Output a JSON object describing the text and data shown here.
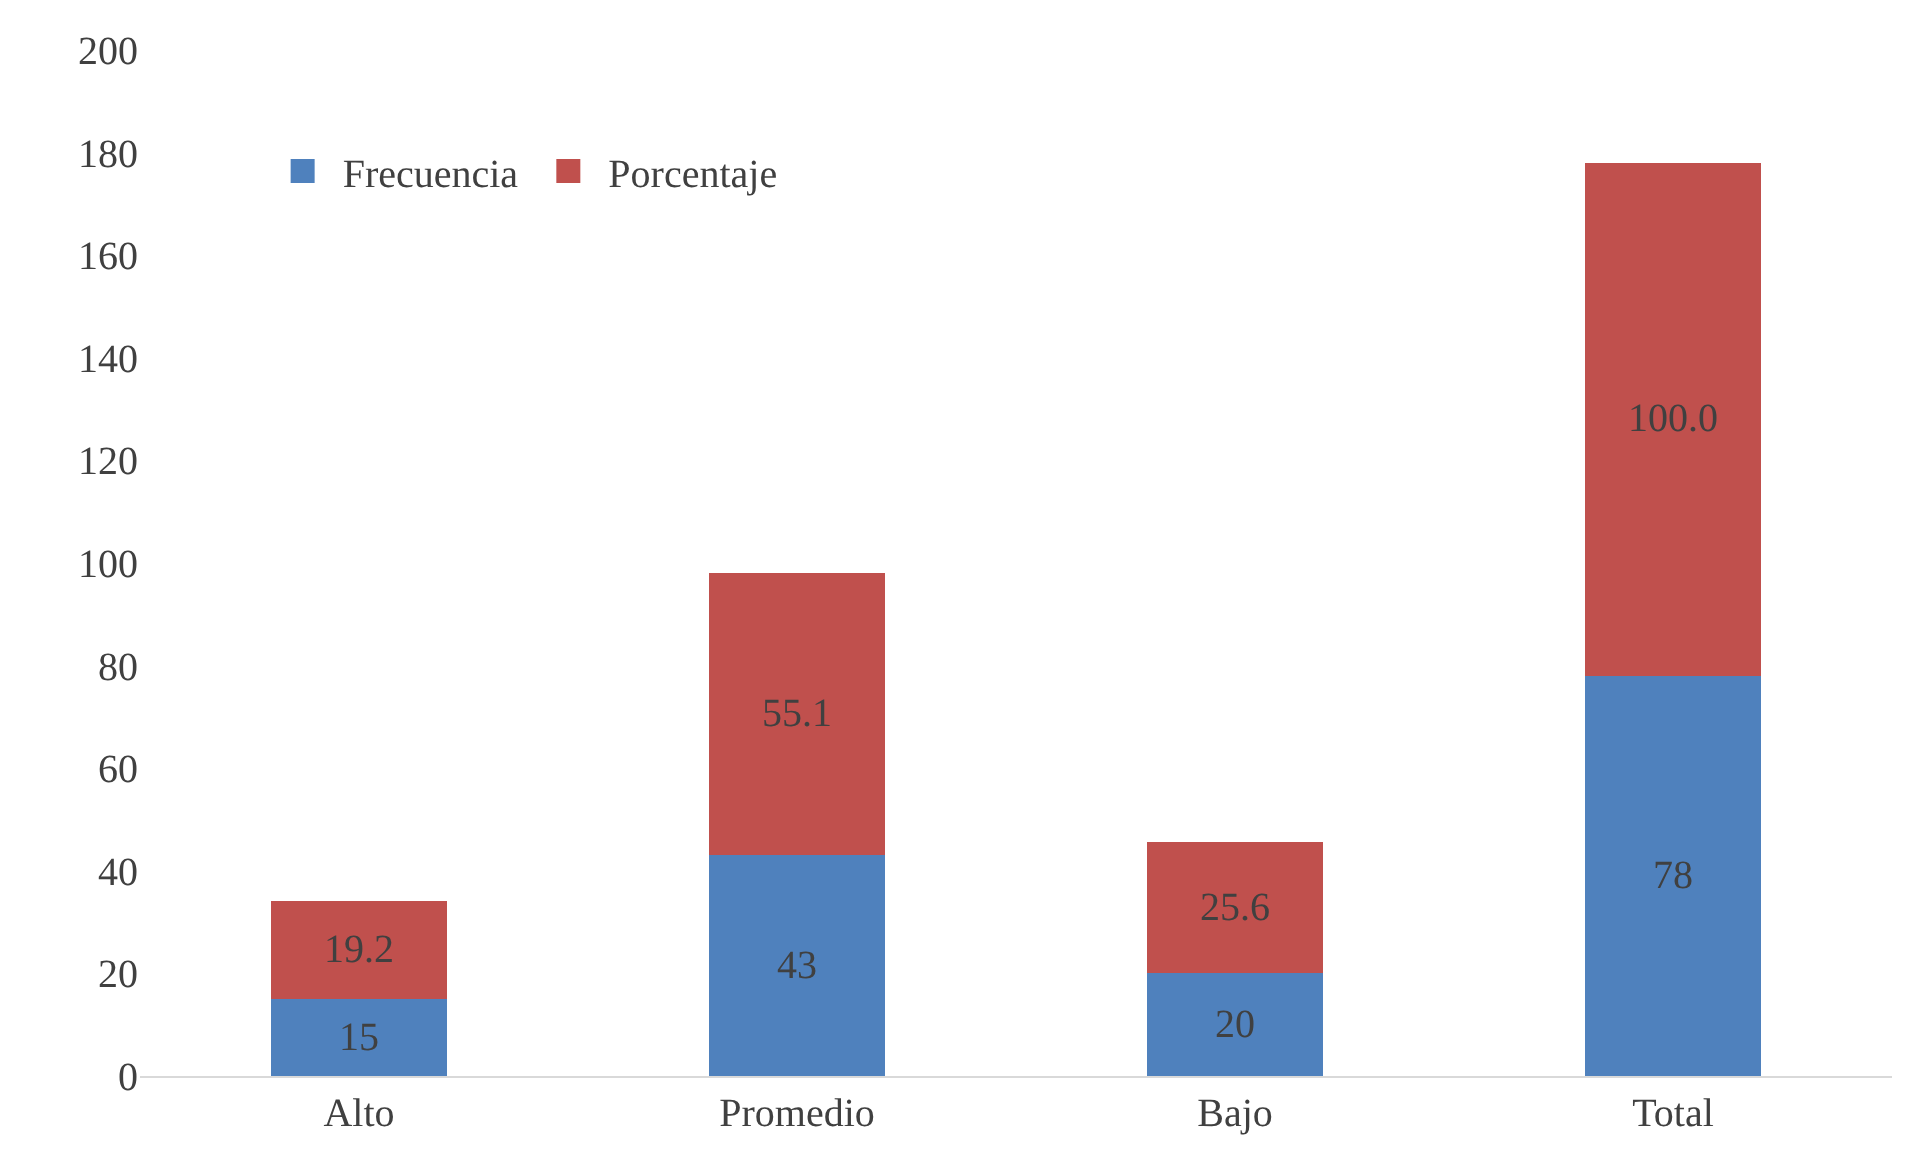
{
  "chart_data": {
    "type": "bar",
    "stacked": true,
    "categories": [
      "Alto",
      "Promedio",
      "Bajo",
      "Total"
    ],
    "series": [
      {
        "name": "Frecuencia",
        "color": "#4f81bd",
        "values": [
          15,
          43,
          20,
          78
        ],
        "value_labels": [
          "15",
          "43",
          "20",
          "78"
        ]
      },
      {
        "name": "Porcentaje",
        "color": "#c0504d",
        "values": [
          19.2,
          55.1,
          25.6,
          100.0
        ],
        "value_labels": [
          "19.2",
          "55.1",
          "25.6",
          "100.0"
        ]
      }
    ],
    "ylim": [
      0,
      200
    ],
    "yticks": [
      0,
      20,
      40,
      60,
      80,
      100,
      120,
      140,
      160,
      180,
      200
    ],
    "grid": false,
    "legend": "top left"
  }
}
